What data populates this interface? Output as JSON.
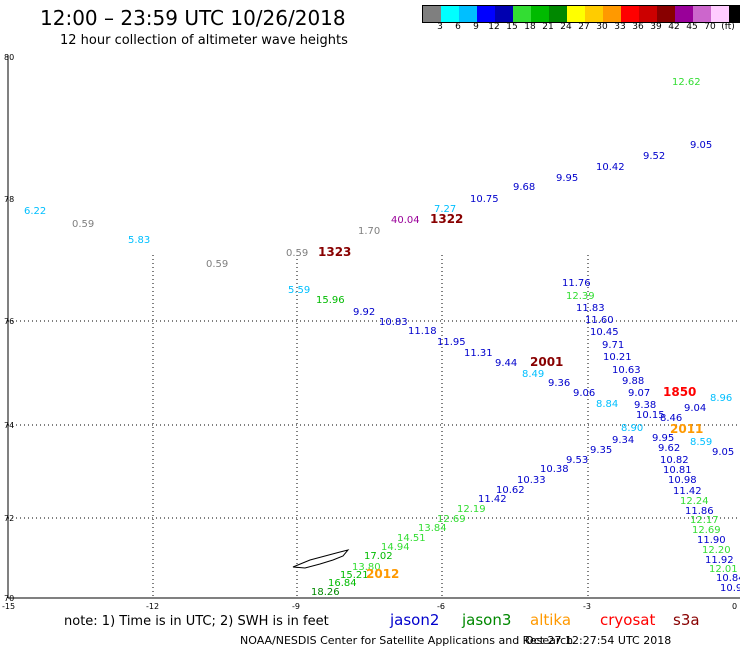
{
  "header": {
    "title": "12:00 – 23:59 UTC 10/26/2018",
    "subtitle": "12 hour collection of altimeter wave heights"
  },
  "legend": {
    "colors": [
      "#7f7f7f",
      "#00ffff",
      "#00bfff",
      "#0000ff",
      "#0000b0",
      "#33dd33",
      "#00bb00",
      "#008800",
      "#ffff00",
      "#ffcc00",
      "#ff9900",
      "#ff0000",
      "#cc0000",
      "#880000",
      "#990099",
      "#cc66cc",
      "#ffccff",
      "#000000"
    ],
    "labels": [
      "3",
      "6",
      "9",
      "12",
      "15",
      "18",
      "21",
      "24",
      "27",
      "30",
      "33",
      "36",
      "39",
      "42",
      "45",
      "70",
      "(ft)"
    ]
  },
  "axes": {
    "lat_labels": [
      "80",
      "78",
      "76",
      "74",
      "72",
      "70"
    ],
    "lon_labels": [
      "-15",
      "-12",
      "-9",
      "-6",
      "-3",
      "0"
    ]
  },
  "points": [
    {
      "text": "6.22",
      "color": "#00bfff"
    },
    {
      "text": "0.59",
      "color": "#7f7f7f"
    },
    {
      "text": "5.83",
      "color": "#00bfff"
    },
    {
      "text": "0.59",
      "color": "#7f7f7f"
    },
    {
      "text": "0.59",
      "color": "#7f7f7f"
    },
    {
      "text": "1.70",
      "color": "#7f7f7f"
    },
    {
      "text": "40.04",
      "color": "#990099"
    },
    {
      "text": "7.27",
      "color": "#00bfff"
    },
    {
      "text": "10.75",
      "color": "#0000cc"
    },
    {
      "text": "9.68",
      "color": "#0000cc"
    },
    {
      "text": "9.95",
      "color": "#0000cc"
    },
    {
      "text": "10.42",
      "color": "#0000cc"
    },
    {
      "text": "9.52",
      "color": "#0000cc"
    },
    {
      "text": "9.05",
      "color": "#0000cc"
    },
    {
      "text": "12.62",
      "color": "#33dd33"
    },
    {
      "text": "5.59",
      "color": "#00bfff"
    },
    {
      "text": "15.96",
      "color": "#00bb00"
    },
    {
      "text": "9.92",
      "color": "#0000cc"
    },
    {
      "text": "10.83",
      "color": "#0000cc"
    },
    {
      "text": "11.18",
      "color": "#0000cc"
    },
    {
      "text": "11.95",
      "color": "#0000cc"
    },
    {
      "text": "11.31",
      "color": "#0000cc"
    },
    {
      "text": "9.44",
      "color": "#0000cc"
    },
    {
      "text": "8.49",
      "color": "#00bfff"
    },
    {
      "text": "9.36",
      "color": "#0000cc"
    },
    {
      "text": "9.06",
      "color": "#0000cc"
    },
    {
      "text": "8.84",
      "color": "#00bfff"
    },
    {
      "text": "11.76",
      "color": "#0000cc"
    },
    {
      "text": "12.39",
      "color": "#33dd33"
    },
    {
      "text": "11.83",
      "color": "#0000cc"
    },
    {
      "text": "11.60",
      "color": "#0000cc"
    },
    {
      "text": "10.45",
      "color": "#0000cc"
    },
    {
      "text": "9.71",
      "color": "#0000cc"
    },
    {
      "text": "10.21",
      "color": "#0000cc"
    },
    {
      "text": "10.63",
      "color": "#0000cc"
    },
    {
      "text": "9.88",
      "color": "#0000cc"
    },
    {
      "text": "9.07",
      "color": "#0000cc"
    },
    {
      "text": "9.38",
      "color": "#0000cc"
    },
    {
      "text": "9.04",
      "color": "#0000cc"
    },
    {
      "text": "8.96",
      "color": "#00bfff"
    },
    {
      "text": "10.15",
      "color": "#0000cc"
    },
    {
      "text": "8.46",
      "color": "#0000cc"
    },
    {
      "text": "8.90",
      "color": "#00bfff"
    },
    {
      "text": "9.95",
      "color": "#0000cc"
    },
    {
      "text": "8.59",
      "color": "#00bfff"
    },
    {
      "text": "9.05",
      "color": "#0000cc"
    },
    {
      "text": "9.34",
      "color": "#0000cc"
    },
    {
      "text": "9.35",
      "color": "#0000cc"
    },
    {
      "text": "9.53",
      "color": "#0000cc"
    },
    {
      "text": "10.38",
      "color": "#0000cc"
    },
    {
      "text": "10.33",
      "color": "#0000cc"
    },
    {
      "text": "10.62",
      "color": "#0000cc"
    },
    {
      "text": "11.42",
      "color": "#0000cc"
    },
    {
      "text": "12.19",
      "color": "#33dd33"
    },
    {
      "text": "12.69",
      "color": "#33dd33"
    },
    {
      "text": "13.84",
      "color": "#33dd33"
    },
    {
      "text": "14.51",
      "color": "#33dd33"
    },
    {
      "text": "14.94",
      "color": "#33dd33"
    },
    {
      "text": "17.02",
      "color": "#00bb00"
    },
    {
      "text": "13.80",
      "color": "#33dd33"
    },
    {
      "text": "15.21",
      "color": "#00bb00"
    },
    {
      "text": "16.84",
      "color": "#00bb00"
    },
    {
      "text": "18.26",
      "color": "#008800"
    },
    {
      "text": "9.62",
      "color": "#0000cc"
    },
    {
      "text": "10.82",
      "color": "#0000cc"
    },
    {
      "text": "10.81",
      "color": "#0000cc"
    },
    {
      "text": "10.98",
      "color": "#0000cc"
    },
    {
      "text": "11.42",
      "color": "#0000cc"
    },
    {
      "text": "12.24",
      "color": "#33dd33"
    },
    {
      "text": "11.86",
      "color": "#0000cc"
    },
    {
      "text": "12.17",
      "color": "#33dd33"
    },
    {
      "text": "12.69",
      "color": "#33dd33"
    },
    {
      "text": "11.90",
      "color": "#0000cc"
    },
    {
      "text": "12.20",
      "color": "#33dd33"
    },
    {
      "text": "11.92",
      "color": "#0000cc"
    },
    {
      "text": "12.01",
      "color": "#33dd33"
    },
    {
      "text": "10.84",
      "color": "#0000cc"
    },
    {
      "text": "10.9",
      "color": "#0000cc"
    }
  ],
  "time_labels": [
    {
      "text": "1322",
      "color": "#880000"
    },
    {
      "text": "1323",
      "color": "#880000"
    },
    {
      "text": "2001",
      "color": "#880000"
    },
    {
      "text": "1850",
      "color": "#ff0000"
    },
    {
      "text": "2011",
      "color": "#ff9900"
    },
    {
      "text": "2012",
      "color": "#ff9900"
    }
  ],
  "note": "note:  1) Time is in UTC;  2) SWH is in feet",
  "satellites": [
    {
      "name": "jason2",
      "color": "#0000cc"
    },
    {
      "name": "jason3",
      "color": "#008800"
    },
    {
      "name": "altika",
      "color": "#ff9900"
    },
    {
      "name": "cryosat",
      "color": "#ff0000"
    },
    {
      "name": "s3a",
      "color": "#880000"
    }
  ],
  "footer": {
    "left": "NOAA/NESDIS Center for Satellite Applications and Research",
    "right": "Oct 27 12:27:54 UTC 2018"
  }
}
